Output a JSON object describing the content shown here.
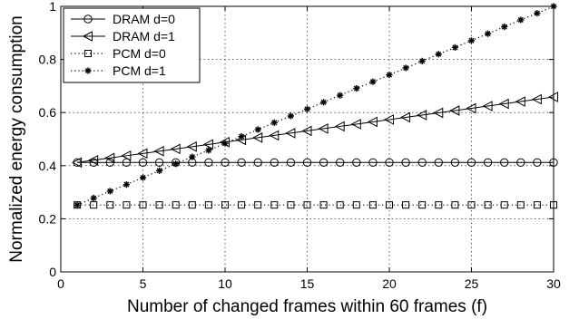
{
  "chart_data": {
    "type": "line",
    "title": "",
    "xlabel": "Number of changed frames within 60 frames (f)",
    "ylabel": "Normalized energy consumption",
    "xlim": [
      0,
      30
    ],
    "ylim": [
      0,
      1
    ],
    "xticks": [
      "0",
      "5",
      "10",
      "15",
      "20",
      "25",
      "30"
    ],
    "yticks": [
      "0",
      "0.2",
      "0.4",
      "0.6",
      "0.8",
      "1"
    ],
    "grid": "dotted",
    "legend": "top-left",
    "x": [
      1,
      2,
      3,
      4,
      5,
      6,
      7,
      8,
      9,
      10,
      11,
      12,
      13,
      14,
      15,
      16,
      17,
      18,
      19,
      20,
      21,
      22,
      23,
      24,
      25,
      26,
      27,
      28,
      29,
      30
    ],
    "series": [
      {
        "name": "DRAM d=0",
        "marker": "circle",
        "line": "solid",
        "values": [
          0.412,
          0.412,
          0.412,
          0.412,
          0.412,
          0.412,
          0.412,
          0.412,
          0.412,
          0.412,
          0.412,
          0.412,
          0.412,
          0.412,
          0.412,
          0.412,
          0.412,
          0.412,
          0.412,
          0.412,
          0.412,
          0.412,
          0.412,
          0.412,
          0.412,
          0.412,
          0.412,
          0.412,
          0.412,
          0.412
        ]
      },
      {
        "name": "DRAM d=1",
        "marker": "triangle-left",
        "line": "solid",
        "values": [
          0.412,
          0.4205,
          0.429,
          0.4375,
          0.446,
          0.4545,
          0.463,
          0.4715,
          0.48,
          0.4885,
          0.497,
          0.5055,
          0.514,
          0.5225,
          0.531,
          0.5395,
          0.548,
          0.5565,
          0.565,
          0.5735,
          0.582,
          0.5905,
          0.599,
          0.6075,
          0.616,
          0.6245,
          0.633,
          0.6415,
          0.65,
          0.6585
        ]
      },
      {
        "name": "PCM d=0",
        "marker": "square",
        "line": "dotted",
        "values": [
          0.252,
          0.252,
          0.252,
          0.252,
          0.252,
          0.252,
          0.252,
          0.252,
          0.252,
          0.252,
          0.252,
          0.252,
          0.252,
          0.252,
          0.252,
          0.252,
          0.252,
          0.252,
          0.252,
          0.252,
          0.252,
          0.252,
          0.252,
          0.252,
          0.252,
          0.252,
          0.252,
          0.252,
          0.252,
          0.252
        ]
      },
      {
        "name": "PCM d=1",
        "marker": "asterisk",
        "line": "dotted",
        "values": [
          0.252,
          0.278,
          0.304,
          0.329,
          0.355,
          0.381,
          0.407,
          0.433,
          0.458,
          0.484,
          0.51,
          0.536,
          0.562,
          0.587,
          0.613,
          0.639,
          0.665,
          0.691,
          0.716,
          0.742,
          0.768,
          0.794,
          0.82,
          0.845,
          0.871,
          0.897,
          0.923,
          0.949,
          0.974,
          1.0
        ]
      }
    ]
  }
}
